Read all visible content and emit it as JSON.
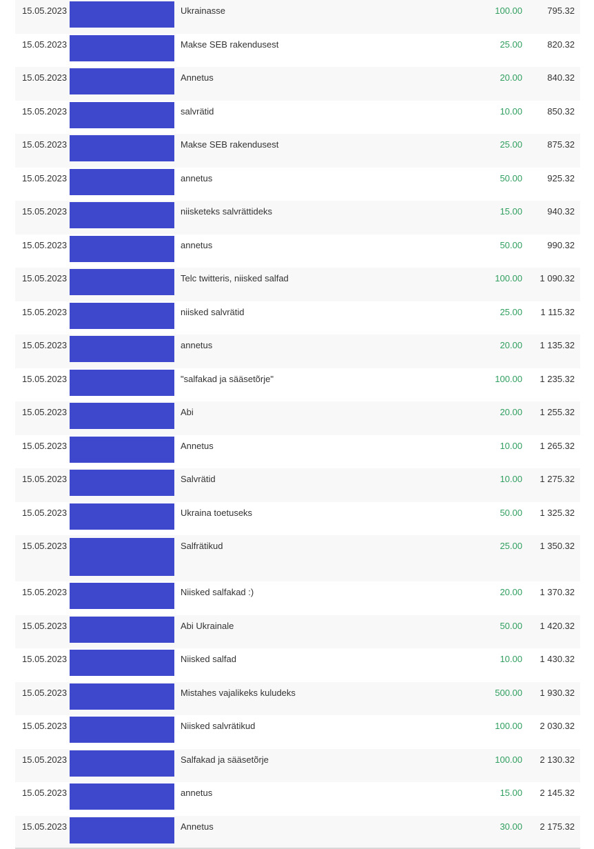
{
  "colors": {
    "amount": "#2f9e5e",
    "redaction": "#3e48cc",
    "row_alt": "#f8f8f8"
  },
  "transactions": [
    {
      "date": "15.05.2023",
      "description": "Ukrainasse",
      "amount": "100.00",
      "balance": "795.32"
    },
    {
      "date": "15.05.2023",
      "description": "Makse SEB rakendusest",
      "amount": "25.00",
      "balance": "820.32"
    },
    {
      "date": "15.05.2023",
      "description": "Annetus",
      "amount": "20.00",
      "balance": "840.32"
    },
    {
      "date": "15.05.2023",
      "description": "salvrätid",
      "amount": "10.00",
      "balance": "850.32"
    },
    {
      "date": "15.05.2023",
      "description": "Makse SEB rakendusest",
      "amount": "25.00",
      "balance": "875.32"
    },
    {
      "date": "15.05.2023",
      "description": "annetus",
      "amount": "50.00",
      "balance": "925.32"
    },
    {
      "date": "15.05.2023",
      "description": "niisketeks salvrättideks",
      "amount": "15.00",
      "balance": "940.32"
    },
    {
      "date": "15.05.2023",
      "description": "annetus",
      "amount": "50.00",
      "balance": "990.32"
    },
    {
      "date": "15.05.2023",
      "description": "Telc twitteris, niisked salfad",
      "amount": "100.00",
      "balance": "1 090.32"
    },
    {
      "date": "15.05.2023",
      "description": "niisked salvrätid",
      "amount": "25.00",
      "balance": "1 115.32"
    },
    {
      "date": "15.05.2023",
      "description": "annetus",
      "amount": "20.00",
      "balance": "1 135.32"
    },
    {
      "date": "15.05.2023",
      "description": "\"salfakad ja sääsetõrje\"",
      "amount": "100.00",
      "balance": "1 235.32"
    },
    {
      "date": "15.05.2023",
      "description": "Abi",
      "amount": "20.00",
      "balance": "1 255.32"
    },
    {
      "date": "15.05.2023",
      "description": "Annetus",
      "amount": "10.00",
      "balance": "1 265.32"
    },
    {
      "date": "15.05.2023",
      "description": "Salvrätid",
      "amount": "10.00",
      "balance": "1 275.32"
    },
    {
      "date": "15.05.2023",
      "description": "Ukraina toetuseks",
      "amount": "50.00",
      "balance": "1 325.32"
    },
    {
      "date": "15.05.2023",
      "description": "Salfrätikud",
      "amount": "25.00",
      "balance": "1 350.32",
      "tall": true
    },
    {
      "date": "15.05.2023",
      "description": "Niisked salfakad :)",
      "amount": "20.00",
      "balance": "1 370.32"
    },
    {
      "date": "15.05.2023",
      "description": "Abi Ukrainale",
      "amount": "50.00",
      "balance": "1 420.32"
    },
    {
      "date": "15.05.2023",
      "description": "Niisked salfad",
      "amount": "10.00",
      "balance": "1 430.32"
    },
    {
      "date": "15.05.2023",
      "description": "Mistahes vajalikeks kuludeks",
      "amount": "500.00",
      "balance": "1 930.32"
    },
    {
      "date": "15.05.2023",
      "description": "Niisked salvrätikud",
      "amount": "100.00",
      "balance": "2 030.32"
    },
    {
      "date": "15.05.2023",
      "description": "Salfakad ja sääsetõrje",
      "amount": "100.00",
      "balance": "2 130.32"
    },
    {
      "date": "15.05.2023",
      "description": "annetus",
      "amount": "15.00",
      "balance": "2 145.32"
    },
    {
      "date": "15.05.2023",
      "description": "Annetus",
      "amount": "30.00",
      "balance": "2 175.32"
    }
  ]
}
